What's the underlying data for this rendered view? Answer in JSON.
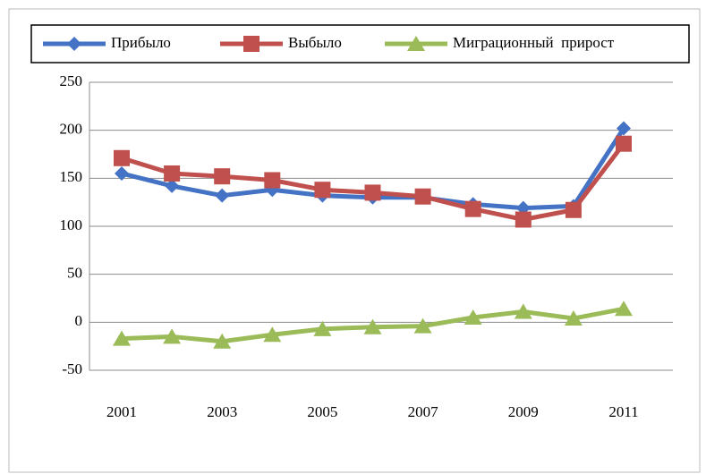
{
  "chart_data": {
    "type": "line",
    "categories": [
      "2001",
      null,
      "2003",
      null,
      "2005",
      null,
      "2007",
      null,
      "2009",
      null,
      "2011"
    ],
    "series": [
      {
        "name": "Прибыло",
        "color": "#4472c4",
        "marker": "diamond",
        "values": [
          155,
          142,
          132,
          138,
          132,
          130,
          130,
          123,
          119,
          121,
          202
        ]
      },
      {
        "name": "Выбыло",
        "color": "#c0504d",
        "marker": "square",
        "values": [
          171,
          155,
          152,
          148,
          138,
          135,
          131,
          118,
          107,
          117,
          186
        ]
      },
      {
        "name": "Миграционный  прирост",
        "color": "#9bbb59",
        "marker": "triangle",
        "values": [
          -17,
          -15,
          -20,
          -13,
          -7,
          -5,
          -4,
          5,
          11,
          4,
          14
        ]
      }
    ],
    "ylim": [
      -50,
      250
    ],
    "yticks": [
      -50,
      0,
      50,
      100,
      150,
      200,
      250
    ],
    "grid": true,
    "legend": "top"
  }
}
